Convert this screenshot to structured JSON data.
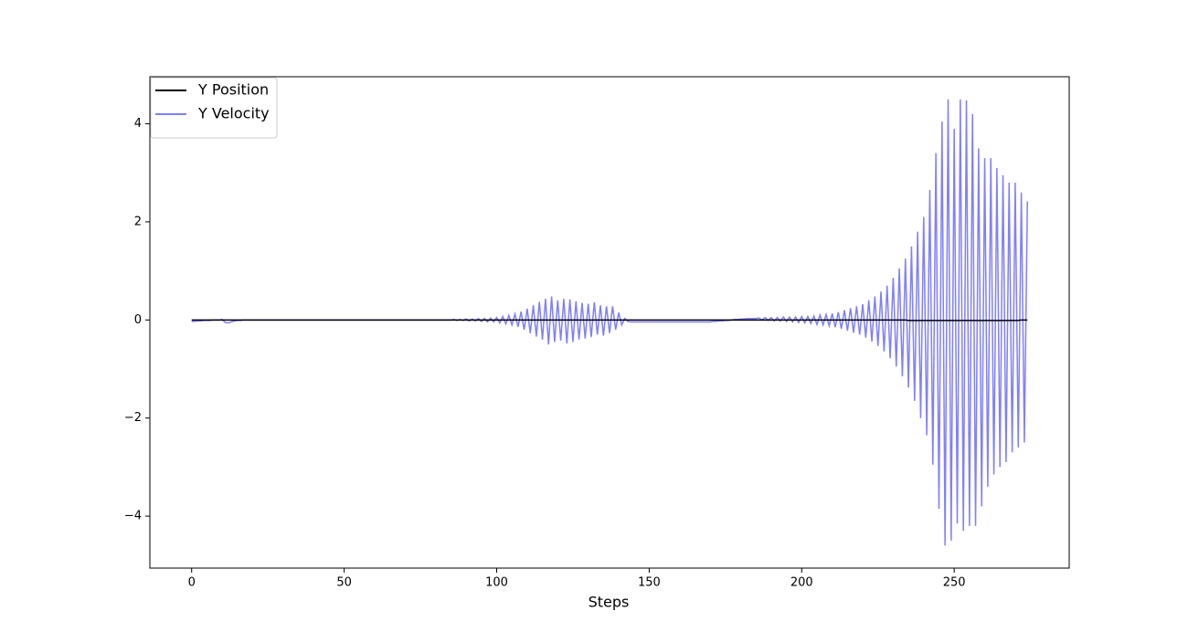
{
  "chart_data": {
    "type": "line",
    "xlabel": "Steps",
    "x": [
      0,
      1,
      2,
      3,
      4,
      5,
      6,
      7,
      8,
      9,
      10,
      11,
      12,
      13,
      14,
      15,
      16,
      17,
      18,
      19,
      20,
      21,
      22,
      23,
      24,
      25,
      26,
      27,
      28,
      29,
      30,
      31,
      32,
      33,
      34,
      35,
      36,
      37,
      38,
      39,
      40,
      41,
      42,
      43,
      44,
      45,
      46,
      47,
      48,
      49,
      50,
      51,
      52,
      53,
      54,
      55,
      56,
      57,
      58,
      59,
      60,
      61,
      62,
      63,
      64,
      65,
      66,
      67,
      68,
      69,
      70,
      71,
      72,
      73,
      74,
      75,
      76,
      77,
      78,
      79,
      80,
      81,
      82,
      83,
      84,
      85,
      86,
      87,
      88,
      89,
      90,
      91,
      92,
      93,
      94,
      95,
      96,
      97,
      98,
      99,
      100,
      101,
      102,
      103,
      104,
      105,
      106,
      107,
      108,
      109,
      110,
      111,
      112,
      113,
      114,
      115,
      116,
      117,
      118,
      119,
      120,
      121,
      122,
      123,
      124,
      125,
      126,
      127,
      128,
      129,
      130,
      131,
      132,
      133,
      134,
      135,
      136,
      137,
      138,
      139,
      140,
      141,
      142,
      143,
      144,
      145,
      146,
      147,
      148,
      149,
      150,
      151,
      152,
      153,
      154,
      155,
      156,
      157,
      158,
      159,
      160,
      161,
      162,
      163,
      164,
      165,
      166,
      167,
      168,
      169,
      170,
      171,
      172,
      173,
      174,
      175,
      176,
      177,
      178,
      179,
      180,
      181,
      182,
      183,
      184,
      185,
      186,
      187,
      188,
      189,
      190,
      191,
      192,
      193,
      194,
      195,
      196,
      197,
      198,
      199,
      200,
      201,
      202,
      203,
      204,
      205,
      206,
      207,
      208,
      209,
      210,
      211,
      212,
      213,
      214,
      215,
      216,
      217,
      218,
      219,
      220,
      221,
      222,
      223,
      224,
      225,
      226,
      227,
      228,
      229,
      230,
      231,
      232,
      233,
      234,
      235,
      236,
      237,
      238,
      239,
      240,
      241,
      242,
      243,
      244,
      245,
      246,
      247,
      248,
      249,
      250,
      251,
      252,
      253,
      254,
      255,
      256,
      257,
      258,
      259,
      260,
      261,
      262,
      263,
      264,
      265,
      266,
      267,
      268,
      269,
      270,
      271,
      272,
      273,
      274
    ],
    "series": [
      {
        "name": "Y Position",
        "color": "#000000",
        "values": [
          0,
          0,
          0,
          0,
          0,
          0,
          0,
          0,
          0,
          0,
          0,
          0,
          0,
          0,
          0,
          0,
          0,
          0,
          0,
          0,
          0,
          0,
          0,
          0,
          0,
          0,
          0,
          0,
          0,
          0,
          0,
          0,
          0,
          0,
          0,
          0,
          0,
          0,
          0,
          0,
          0,
          0,
          0,
          0,
          0,
          0,
          0,
          0,
          0,
          0,
          0,
          0,
          0,
          0,
          0,
          0,
          0,
          0,
          0,
          0,
          0,
          0,
          0,
          0,
          0,
          0,
          0,
          0,
          0,
          0,
          0,
          0,
          0,
          0,
          0,
          0,
          0,
          0,
          0,
          0,
          0,
          0,
          0,
          0,
          0,
          0,
          0,
          0,
          0,
          0,
          0,
          0,
          0,
          0,
          0,
          0,
          0,
          0,
          0,
          0,
          0,
          0,
          0,
          0,
          0,
          0,
          0,
          0,
          0,
          0,
          0,
          0,
          0,
          0,
          0,
          0,
          0,
          0,
          0,
          0,
          0,
          0,
          0,
          0,
          0,
          0,
          0,
          0,
          0,
          0,
          0,
          0,
          0,
          0,
          0,
          0,
          0,
          0,
          0,
          0,
          0,
          0,
          0,
          0,
          0,
          0,
          0,
          0,
          0,
          0,
          0,
          0,
          0,
          0,
          0,
          0,
          0,
          0,
          0,
          0,
          0,
          0,
          0,
          0,
          0,
          0,
          0,
          0,
          0,
          0,
          0,
          0,
          0,
          0,
          0,
          0,
          0,
          0,
          0,
          0,
          0,
          0,
          0,
          0,
          0,
          0,
          0,
          0,
          0,
          0,
          0,
          0,
          0,
          0,
          0,
          0,
          0,
          0,
          0,
          0,
          0,
          0,
          0,
          0,
          0,
          0,
          0,
          0,
          0,
          0,
          0,
          0,
          0,
          0,
          0,
          0,
          0,
          0,
          0,
          0,
          0,
          0,
          0,
          0,
          0,
          0,
          0,
          0,
          0,
          0,
          0,
          0,
          0,
          0,
          0,
          -0.01,
          -0.01,
          -0.01,
          -0.01,
          -0.01,
          -0.01,
          -0.01,
          -0.01,
          -0.01,
          -0.01,
          -0.01,
          -0.01,
          -0.01,
          -0.01,
          -0.01,
          -0.01,
          -0.01,
          -0.01,
          -0.01,
          -0.01,
          -0.01,
          -0.01,
          -0.01,
          -0.01,
          -0.01,
          -0.01,
          -0.01,
          -0.01,
          -0.01,
          -0.01,
          -0.01,
          -0.01,
          -0.01,
          -0.01,
          -0.01,
          -0.01,
          -0.01,
          0,
          0,
          0
        ]
      },
      {
        "name": "Y Velocity",
        "color": "#7f7fff",
        "values": [
          -0.03,
          -0.03,
          -0.02,
          -0.02,
          -0.01,
          -0.01,
          -0.01,
          0,
          0,
          0,
          0.01,
          -0.05,
          -0.06,
          -0.04,
          -0.02,
          -0.01,
          -0.01,
          0,
          0,
          0,
          0,
          0,
          0,
          0,
          0,
          0,
          0,
          0,
          0,
          0,
          0,
          0,
          0,
          0,
          0,
          0,
          0,
          0,
          0,
          0,
          0,
          0,
          0,
          0,
          0,
          0,
          0,
          0,
          0,
          0,
          0,
          0,
          0,
          0,
          0,
          0,
          0,
          0,
          0,
          0,
          0,
          0,
          0,
          0,
          0,
          0,
          0,
          0,
          0,
          0,
          0,
          0,
          0,
          0,
          0,
          0,
          0,
          0,
          0,
          0,
          0,
          0,
          0,
          0,
          0,
          0,
          0.01,
          -0.01,
          0.01,
          -0.01,
          0.02,
          -0.02,
          0.02,
          -0.02,
          0.03,
          -0.03,
          0.03,
          -0.04,
          0.04,
          -0.04,
          0.05,
          -0.06,
          0.07,
          -0.08,
          0.09,
          -0.1,
          0.12,
          -0.14,
          0.17,
          -0.2,
          0.23,
          -0.27,
          0.3,
          -0.34,
          0.37,
          -0.4,
          0.43,
          -0.5,
          0.48,
          -0.45,
          0.4,
          -0.42,
          0.43,
          -0.48,
          0.42,
          -0.45,
          0.38,
          -0.4,
          0.35,
          -0.38,
          0.33,
          -0.35,
          0.36,
          -0.3,
          0.3,
          -0.32,
          0.28,
          -0.27,
          0.28,
          -0.2,
          0.15,
          -0.1,
          0.03,
          -0.03,
          -0.04,
          -0.04,
          -0.04,
          -0.04,
          -0.04,
          -0.04,
          -0.04,
          -0.04,
          -0.04,
          -0.04,
          -0.04,
          -0.04,
          -0.04,
          -0.04,
          -0.04,
          -0.04,
          -0.04,
          -0.04,
          -0.04,
          -0.04,
          -0.04,
          -0.04,
          -0.04,
          -0.04,
          -0.04,
          -0.04,
          -0.04,
          -0.03,
          -0.03,
          -0.02,
          -0.02,
          -0.01,
          -0.01,
          0,
          0.01,
          0.01,
          0.02,
          0.02,
          0.03,
          0.03,
          0.03,
          0.03,
          0.04,
          0,
          0.05,
          -0.01,
          0.05,
          -0.02,
          0.05,
          -0.02,
          0.06,
          -0.03,
          0.06,
          -0.04,
          0.06,
          -0.05,
          0.07,
          -0.06,
          0.07,
          -0.07,
          0.08,
          -0.09,
          0.1,
          -0.1,
          0.11,
          -0.12,
          0.13,
          -0.15,
          0.16,
          -0.18,
          0.2,
          -0.22,
          0.24,
          -0.26,
          0.28,
          -0.3,
          0.32,
          -0.36,
          0.4,
          -0.44,
          0.48,
          -0.53,
          0.58,
          -0.64,
          0.7,
          -0.78,
          0.86,
          -0.95,
          1.05,
          -1.15,
          1.25,
          -1.38,
          1.5,
          -1.65,
          1.8,
          -2,
          2.1,
          -2.35,
          2.65,
          -2.95,
          3.4,
          -3.85,
          4.05,
          -4.6,
          4.5,
          -4.5,
          3.9,
          -4.15,
          4.5,
          -4.3,
          4.48,
          -4.2,
          4.2,
          -4.2,
          3.5,
          -3.8,
          3.3,
          -3.4,
          3.3,
          -3.15,
          3.1,
          -3,
          2.95,
          -2.9,
          2.8,
          -2.7,
          2.8,
          -2.6,
          2.6,
          -2.5,
          2.42
        ]
      }
    ],
    "xlim": [
      -13.7,
      287.7
    ],
    "xticks": [
      0,
      50,
      100,
      150,
      200,
      250
    ],
    "ylim": [
      -5.06,
      4.96
    ],
    "yticks": [
      {
        "value": -4,
        "label": "−4"
      },
      {
        "value": -2,
        "label": "−2"
      },
      0,
      2,
      4
    ],
    "grid": false,
    "legend": "upper left"
  }
}
